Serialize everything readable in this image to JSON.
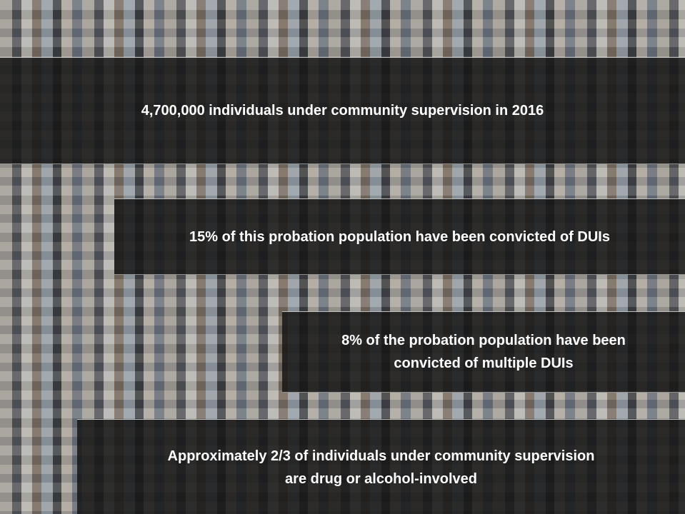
{
  "statements": [
    {
      "lines": [
        "4,700,000 individuals under community supervision in 2016"
      ]
    },
    {
      "lines": [
        "15% of this probation population have been convicted of DUIs"
      ]
    },
    {
      "lines": [
        "8% of the probation population have been",
        "convicted of multiple DUIs"
      ]
    },
    {
      "lines": [
        "Approximately 2/3 of individuals under community supervision",
        "are drug or alcohol-involved"
      ]
    }
  ]
}
